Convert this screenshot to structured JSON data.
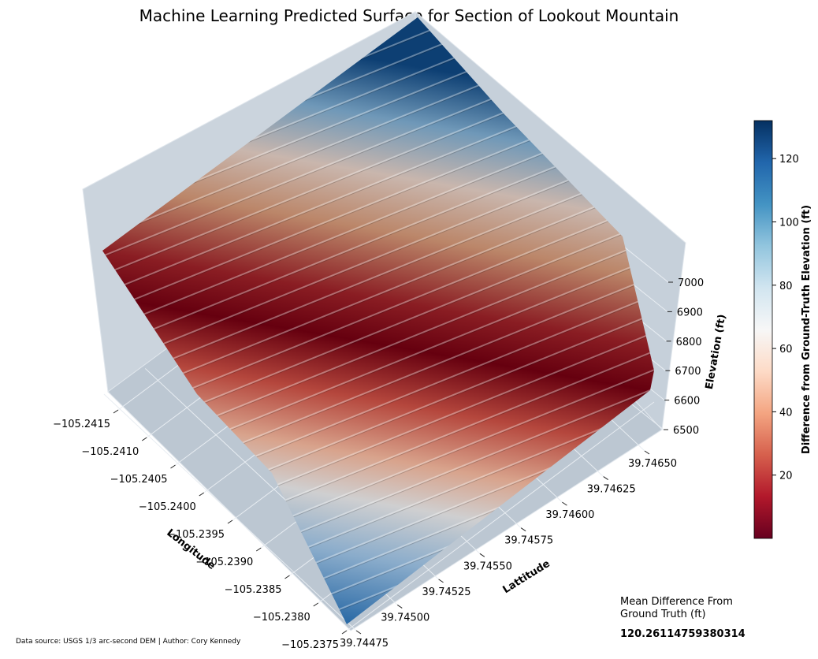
{
  "title": "Machine Learning Predicted Surface for Section of Lookout Mountain",
  "footer": "Data source: USGS 1/3 arc-second DEM | Author: Cory Kennedy",
  "stats": {
    "label_line1": "Mean Difference From",
    "label_line2": "Ground Truth (ft)",
    "value": "120.26114759380314"
  },
  "colors": {
    "pane": "#cdd6df",
    "pane_dark": "#bfc9d4",
    "colormap_stops": [
      "#67001f",
      "#b2182b",
      "#d6604d",
      "#f4a582",
      "#fddbc7",
      "#f7f7f7",
      "#d1e5f0",
      "#92c5de",
      "#4393c3",
      "#2166ac",
      "#053061"
    ]
  },
  "chart_data": {
    "type": "surface3d",
    "title": "Machine Learning Predicted Surface for Section of Lookout Mountain",
    "x_axis": {
      "label": "Longitude",
      "ticks": [
        "−105.2415",
        "−105.2410",
        "−105.2405",
        "−105.2400",
        "−105.2395",
        "−105.2390",
        "−105.2385",
        "−105.2380",
        "−105.2375"
      ]
    },
    "y_axis": {
      "label": "Lattitude",
      "ticks": [
        "39.74475",
        "39.74500",
        "39.74525",
        "39.74550",
        "39.74575",
        "39.74600",
        "39.74625",
        "39.74650"
      ]
    },
    "z_axis": {
      "label": "Elevation (ft)",
      "ticks": [
        "6500",
        "6600",
        "6700",
        "6800",
        "6900",
        "7000"
      ]
    },
    "colorbar": {
      "label": "Difference from Ground-Truth Elevation (ft)",
      "ticks": [
        "20",
        "40",
        "60",
        "80",
        "100",
        "120"
      ],
      "range": [
        0,
        132
      ],
      "colormap": "RdBu"
    },
    "grid": true
  }
}
